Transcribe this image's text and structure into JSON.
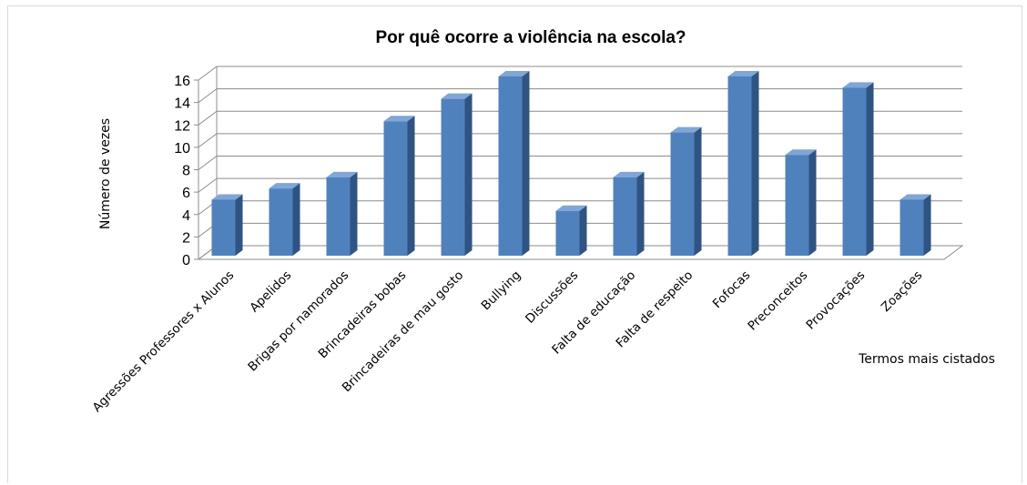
{
  "chart_data": {
    "type": "bar",
    "title": "Por quê ocorre a violência na escola?",
    "xlabel": "Termos mais cistados",
    "ylabel": "Número de vezes",
    "ylim": [
      0,
      16
    ],
    "yticks": [
      0,
      2,
      4,
      6,
      8,
      10,
      12,
      14,
      16
    ],
    "grid": true,
    "legend": "none",
    "bar_color": "#4f81bd",
    "categories": [
      "Agressões Professores x Alunos",
      "Apelidos",
      "Brigas por namorados",
      "Brincadeiras bobas",
      "Brincadeiras de mau gosto",
      "Bullying",
      "Discussões",
      "Falta de educação",
      "Falta de respeito",
      "Fofocas",
      "Preconceitos",
      "Provocações",
      "Zoações"
    ],
    "values": [
      5,
      6,
      7,
      12,
      14,
      16,
      4,
      7,
      11,
      16,
      9,
      15,
      5
    ]
  }
}
